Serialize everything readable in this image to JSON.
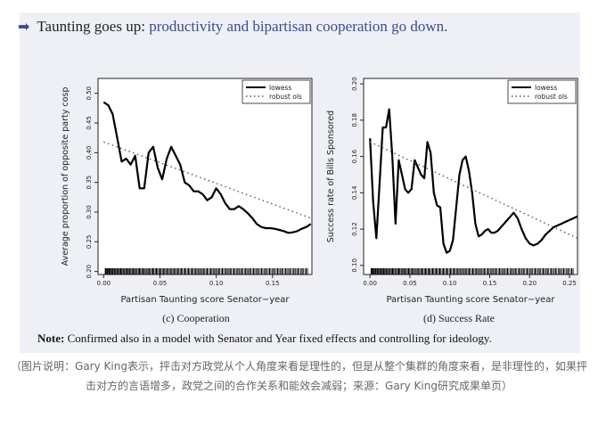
{
  "headline": {
    "prefix": "Taunting goes up:",
    "accent": "productivity and bipartisan cooperation go down."
  },
  "colors": {
    "accent": "#3e4a8f",
    "panel_bg": "#eef0f6",
    "plot_bg": "#ffffff"
  },
  "chart_data": [
    {
      "type": "line",
      "caption": "(c) Cooperation",
      "xlabel": "Partisan Taunting score Senator−year",
      "ylabel": "Average proportion of opposite party cosp",
      "xlim": [
        -0.005,
        0.185
      ],
      "ylim": [
        0.195,
        0.525
      ],
      "xticks": [
        "0.00",
        "0.05",
        "0.10",
        "0.15"
      ],
      "xtick_values": [
        0.0,
        0.05,
        0.1,
        0.15
      ],
      "yticks": [
        "0.20",
        "0.25",
        "0.30",
        "0.35",
        "0.40",
        "0.45",
        "0.50"
      ],
      "ytick_values": [
        0.2,
        0.25,
        0.3,
        0.35,
        0.4,
        0.45,
        0.5
      ],
      "legend": {
        "placement": "top-right",
        "items": [
          "lowess",
          "robust ols"
        ]
      },
      "series": [
        {
          "name": "lowess",
          "style": "solid",
          "x": [
            0.0,
            0.004,
            0.008,
            0.012,
            0.016,
            0.02,
            0.024,
            0.028,
            0.032,
            0.036,
            0.04,
            0.044,
            0.048,
            0.052,
            0.056,
            0.06,
            0.064,
            0.068,
            0.072,
            0.076,
            0.08,
            0.084,
            0.088,
            0.092,
            0.096,
            0.1,
            0.104,
            0.108,
            0.112,
            0.116,
            0.12,
            0.124,
            0.128,
            0.132,
            0.136,
            0.14,
            0.144,
            0.148,
            0.152,
            0.156,
            0.16,
            0.164,
            0.168,
            0.172,
            0.176,
            0.18,
            0.184
          ],
          "y": [
            0.485,
            0.48,
            0.465,
            0.425,
            0.385,
            0.39,
            0.38,
            0.395,
            0.34,
            0.34,
            0.4,
            0.41,
            0.375,
            0.355,
            0.39,
            0.41,
            0.395,
            0.38,
            0.35,
            0.345,
            0.335,
            0.335,
            0.33,
            0.32,
            0.325,
            0.34,
            0.33,
            0.315,
            0.305,
            0.305,
            0.31,
            0.305,
            0.298,
            0.29,
            0.28,
            0.275,
            0.273,
            0.273,
            0.272,
            0.27,
            0.268,
            0.265,
            0.266,
            0.268,
            0.272,
            0.275,
            0.28
          ]
        },
        {
          "name": "robust ols",
          "style": "dotted",
          "x": [
            0.0,
            0.184
          ],
          "y": [
            0.418,
            0.29
          ]
        }
      ]
    },
    {
      "type": "line",
      "caption": "(d) Success Rate",
      "xlabel": "Partisan Taunting score Senator−year",
      "ylabel": "Success rate of Bills Sponsored",
      "xlim": [
        -0.008,
        0.26
      ],
      "ylim": [
        0.095,
        0.203
      ],
      "xticks": [
        "0.00",
        "0.05",
        "0.10",
        "0.15",
        "0.20",
        "0.25"
      ],
      "xtick_values": [
        0.0,
        0.05,
        0.1,
        0.15,
        0.2,
        0.25
      ],
      "yticks": [
        "0.10",
        "0.12",
        "0.14",
        "0.16",
        "0.18",
        "0.20"
      ],
      "ytick_values": [
        0.1,
        0.12,
        0.14,
        0.16,
        0.18,
        0.2
      ],
      "legend": {
        "placement": "top-right",
        "items": [
          "lowess",
          "robust ols"
        ]
      },
      "series": [
        {
          "name": "lowess",
          "style": "solid",
          "x": [
            0.0,
            0.004,
            0.008,
            0.012,
            0.016,
            0.02,
            0.024,
            0.028,
            0.032,
            0.036,
            0.04,
            0.044,
            0.048,
            0.052,
            0.056,
            0.06,
            0.064,
            0.068,
            0.072,
            0.076,
            0.08,
            0.084,
            0.088,
            0.092,
            0.096,
            0.1,
            0.104,
            0.108,
            0.112,
            0.116,
            0.12,
            0.124,
            0.128,
            0.132,
            0.136,
            0.14,
            0.144,
            0.148,
            0.152,
            0.156,
            0.16,
            0.164,
            0.168,
            0.172,
            0.176,
            0.18,
            0.185,
            0.19,
            0.195,
            0.2,
            0.205,
            0.21,
            0.215,
            0.22,
            0.225,
            0.23,
            0.235,
            0.24,
            0.245,
            0.25,
            0.255,
            0.26
          ],
          "y": [
            0.17,
            0.135,
            0.115,
            0.145,
            0.176,
            0.176,
            0.186,
            0.16,
            0.123,
            0.158,
            0.15,
            0.142,
            0.14,
            0.142,
            0.158,
            0.154,
            0.15,
            0.148,
            0.168,
            0.162,
            0.14,
            0.133,
            0.132,
            0.112,
            0.107,
            0.108,
            0.114,
            0.132,
            0.15,
            0.158,
            0.16,
            0.152,
            0.14,
            0.123,
            0.116,
            0.117,
            0.119,
            0.12,
            0.118,
            0.118,
            0.119,
            0.121,
            0.123,
            0.125,
            0.127,
            0.129,
            0.126,
            0.12,
            0.115,
            0.112,
            0.111,
            0.112,
            0.114,
            0.117,
            0.119,
            0.121,
            0.122,
            0.123,
            0.124,
            0.125,
            0.126,
            0.127
          ]
        },
        {
          "name": "robust ols",
          "style": "dotted",
          "x": [
            0.0,
            0.26
          ],
          "y": [
            0.168,
            0.115
          ]
        }
      ]
    }
  ],
  "note": {
    "label": "Note:",
    "text": "Confirmed also in a model with Senator and Year fixed effects and controlling for ideology."
  },
  "footer_caption": "（图片说明：Gary King表示，抨击对方政党从个人角度来看是理性的，但是从整个集群的角度来看，是非理性的，如果抨击对方的言语增多，政党之间的合作关系和能效会减弱；来源：Gary King研究成果单页）"
}
